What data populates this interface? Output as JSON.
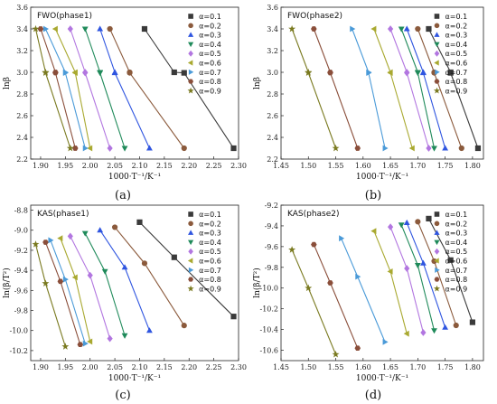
{
  "chart_data": [
    {
      "type": "line",
      "panel_label": "(a)",
      "title": "FWO(phase1)",
      "xlabel": "1000·T⁻¹/K⁻¹",
      "ylabel": "lnβ",
      "xlim": [
        1.88,
        2.3
      ],
      "ylim": [
        2.2,
        3.6
      ],
      "xticks": [
        1.9,
        1.95,
        2.0,
        2.05,
        2.1,
        2.15,
        2.2,
        2.25,
        2.3
      ],
      "yticks": [
        2.2,
        2.4,
        2.6,
        2.8,
        3.0,
        3.2,
        3.4,
        3.6
      ],
      "y_levels": [
        3.4,
        3.0,
        2.995,
        2.3
      ],
      "legend_position": "top-right",
      "series": [
        {
          "name": "α=0.1",
          "x": [
            2.11,
            2.17,
            2.19,
            2.29
          ]
        },
        {
          "name": "α=0.2",
          "x": [
            2.04,
            2.08,
            2.08,
            2.19
          ]
        },
        {
          "name": "α=0.3",
          "x": [
            2.02,
            2.05,
            2.05,
            2.12
          ]
        },
        {
          "name": "α=0.4",
          "x": [
            1.99,
            2.02,
            2.02,
            2.07
          ]
        },
        {
          "name": "α=0.5",
          "x": [
            1.96,
            1.99,
            1.99,
            2.04
          ]
        },
        {
          "name": "α=0.6",
          "x": [
            1.93,
            1.97,
            1.97,
            2.0
          ]
        },
        {
          "name": "α=0.7",
          "x": [
            1.91,
            1.95,
            1.95,
            1.99
          ]
        },
        {
          "name": "α=0.8",
          "x": [
            1.9,
            1.93,
            1.93,
            1.97
          ]
        },
        {
          "name": "α=0.9",
          "x": [
            1.89,
            1.91,
            1.91,
            1.96
          ]
        }
      ]
    },
    {
      "type": "line",
      "panel_label": "(b)",
      "title": "FWO(phase2)",
      "xlabel": "1000·T⁻¹/K⁻¹",
      "ylabel": "lnβ",
      "xlim": [
        1.45,
        1.82
      ],
      "ylim": [
        2.2,
        3.6
      ],
      "xticks": [
        1.45,
        1.5,
        1.55,
        1.6,
        1.65,
        1.7,
        1.75,
        1.8
      ],
      "yticks": [
        2.2,
        2.4,
        2.6,
        2.8,
        3.0,
        3.2,
        3.4,
        3.6
      ],
      "y_levels": [
        3.4,
        3.0,
        2.995,
        2.3
      ],
      "legend_position": "top-right",
      "series": [
        {
          "name": "α=0.1",
          "x": [
            1.72,
            1.76,
            1.76,
            1.81
          ]
        },
        {
          "name": "α=0.2",
          "x": [
            1.7,
            1.73,
            1.73,
            1.78
          ]
        },
        {
          "name": "α=0.3",
          "x": [
            1.68,
            1.71,
            1.71,
            1.75
          ]
        },
        {
          "name": "α=0.4",
          "x": [
            1.67,
            1.7,
            1.7,
            1.73
          ]
        },
        {
          "name": "α=0.5",
          "x": [
            1.65,
            1.68,
            1.68,
            1.72
          ]
        },
        {
          "name": "α=0.6",
          "x": [
            1.62,
            1.65,
            1.65,
            1.69
          ]
        },
        {
          "name": "α=0.7",
          "x": [
            1.58,
            1.61,
            1.61,
            1.64
          ]
        },
        {
          "name": "α=0.8",
          "x": [
            1.51,
            1.54,
            1.54,
            1.59
          ]
        },
        {
          "name": "α=0.9",
          "x": [
            1.47,
            1.5,
            1.5,
            1.55
          ]
        }
      ]
    },
    {
      "type": "line",
      "panel_label": "(c)",
      "title": "KAS(phase1)",
      "xlabel": "1000·T⁻¹/K⁻¹",
      "ylabel": "ln(β/T²)",
      "xlim": [
        1.88,
        2.3
      ],
      "ylim": [
        -10.3,
        -8.75
      ],
      "xticks": [
        1.9,
        1.95,
        2.0,
        2.05,
        2.1,
        2.15,
        2.2,
        2.25,
        2.3
      ],
      "yticks": [
        -10.2,
        -10.0,
        -9.8,
        -9.6,
        -9.4,
        -9.2,
        -9.0,
        -8.8
      ],
      "legend_position": "top-right",
      "series": [
        {
          "name": "α=0.1",
          "x": [
            2.1,
            2.17,
            2.29
          ],
          "y": [
            -8.92,
            -9.27,
            -9.86
          ]
        },
        {
          "name": "α=0.2",
          "x": [
            2.05,
            2.11,
            2.19
          ],
          "y": [
            -8.97,
            -9.33,
            -9.95
          ]
        },
        {
          "name": "α=0.3",
          "x": [
            2.02,
            2.07,
            2.12
          ],
          "y": [
            -9.0,
            -9.37,
            -10.0
          ]
        },
        {
          "name": "α=0.4",
          "x": [
            1.99,
            2.03,
            2.07
          ],
          "y": [
            -9.03,
            -9.41,
            -10.05
          ]
        },
        {
          "name": "α=0.5",
          "x": [
            1.96,
            2.0,
            2.04
          ],
          "y": [
            -9.06,
            -9.45,
            -10.08
          ]
        },
        {
          "name": "α=0.6",
          "x": [
            1.94,
            1.97,
            2.0
          ],
          "y": [
            -9.08,
            -9.47,
            -10.11
          ]
        },
        {
          "name": "α=0.7",
          "x": [
            1.92,
            1.95,
            1.99
          ],
          "y": [
            -9.1,
            -9.49,
            -10.13
          ]
        },
        {
          "name": "α=0.8",
          "x": [
            1.91,
            1.94,
            1.98
          ],
          "y": [
            -9.12,
            -9.51,
            -10.14
          ]
        },
        {
          "name": "α=0.9",
          "x": [
            1.89,
            1.91,
            1.95
          ],
          "y": [
            -9.14,
            -9.53,
            -10.16
          ]
        }
      ]
    },
    {
      "type": "line",
      "panel_label": "(d)",
      "title": "KAS(phase2)",
      "xlabel": "1000·T⁻¹/K⁻¹",
      "ylabel": "ln(β/T²)",
      "xlim": [
        1.45,
        1.82
      ],
      "ylim": [
        -10.7,
        -9.2
      ],
      "xticks": [
        1.45,
        1.5,
        1.55,
        1.6,
        1.65,
        1.7,
        1.75,
        1.8
      ],
      "yticks": [
        -10.6,
        -10.4,
        -10.2,
        -10.0,
        -9.8,
        -9.6,
        -9.4,
        -9.2
      ],
      "legend_position": "top-right",
      "series": [
        {
          "name": "α=0.1",
          "x": [
            1.72,
            1.76,
            1.8
          ],
          "y": [
            -9.33,
            -9.73,
            -10.33
          ]
        },
        {
          "name": "α=0.2",
          "x": [
            1.7,
            1.73,
            1.77
          ],
          "y": [
            -9.36,
            -9.74,
            -10.36
          ]
        },
        {
          "name": "α=0.3",
          "x": [
            1.68,
            1.71,
            1.75
          ],
          "y": [
            -9.37,
            -9.76,
            -10.38
          ]
        },
        {
          "name": "α=0.4",
          "x": [
            1.67,
            1.7,
            1.73
          ],
          "y": [
            -9.39,
            -9.78,
            -10.41
          ]
        },
        {
          "name": "α=0.5",
          "x": [
            1.65,
            1.68,
            1.71
          ],
          "y": [
            -9.41,
            -9.81,
            -10.43
          ]
        },
        {
          "name": "α=0.6",
          "x": [
            1.62,
            1.65,
            1.68
          ],
          "y": [
            -9.45,
            -9.84,
            -10.44
          ]
        },
        {
          "name": "α=0.7",
          "x": [
            1.56,
            1.59,
            1.64
          ],
          "y": [
            -9.52,
            -9.89,
            -10.52
          ]
        },
        {
          "name": "α=0.8",
          "x": [
            1.51,
            1.54,
            1.59
          ],
          "y": [
            -9.58,
            -9.95,
            -10.58
          ]
        },
        {
          "name": "α=0.9",
          "x": [
            1.47,
            1.5,
            1.55
          ],
          "y": [
            -9.63,
            -10.0,
            -10.64
          ]
        }
      ]
    }
  ],
  "styles": [
    {
      "color": "#3a3a3a",
      "marker": "square"
    },
    {
      "color": "#8b5a3c",
      "marker": "circle"
    },
    {
      "color": "#2f55e0",
      "marker": "triangle-up"
    },
    {
      "color": "#1f8a5a",
      "marker": "triangle-down"
    },
    {
      "color": "#b276e0",
      "marker": "diamond"
    },
    {
      "color": "#a9a930",
      "marker": "triangle-left"
    },
    {
      "color": "#4a9ad8",
      "marker": "triangle-right"
    },
    {
      "color": "#8a4e3a",
      "marker": "hexagon"
    },
    {
      "color": "#7a7a20",
      "marker": "star"
    }
  ]
}
